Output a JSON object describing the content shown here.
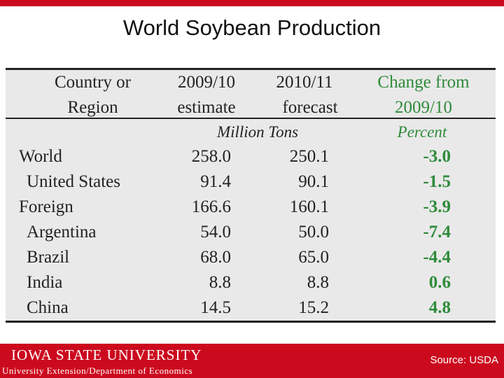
{
  "slide": {
    "title": "World Soybean Production"
  },
  "table": {
    "headers": {
      "col1": [
        "Country or",
        "Region"
      ],
      "col2": [
        "2009/10",
        "estimate"
      ],
      "col3": [
        "2010/11",
        "forecast"
      ],
      "col4": [
        "Change from",
        "2009/10"
      ]
    },
    "units": {
      "tons": "Million Tons",
      "percent": "Percent"
    },
    "rows": [
      {
        "region": "World",
        "estimate": "258.0",
        "forecast": "250.1",
        "change": "-3.0"
      },
      {
        "region": "United States",
        "estimate": "91.4",
        "forecast": "90.1",
        "change": "-1.5"
      },
      {
        "region": "Foreign",
        "estimate": "166.6",
        "forecast": "160.1",
        "change": "-3.9"
      },
      {
        "region": "Argentina",
        "estimate": "54.0",
        "forecast": "50.0",
        "change": "-7.4"
      },
      {
        "region": "Brazil",
        "estimate": "68.0",
        "forecast": "65.0",
        "change": "-4.4"
      },
      {
        "region": "India",
        "estimate": "8.8",
        "forecast": "8.8",
        "change": "0.6"
      },
      {
        "region": "China",
        "estimate": "14.5",
        "forecast": "15.2",
        "change": "4.8"
      }
    ]
  },
  "footer": {
    "logo_text": "IOWA STATE UNIVERSITY",
    "department": "University Extension/Department of Economics",
    "source": "Source: USDA"
  },
  "colors": {
    "brand_red": "#cc0a1e",
    "change_green": "#2e8b3a",
    "table_bg": "#e9e9e9"
  }
}
